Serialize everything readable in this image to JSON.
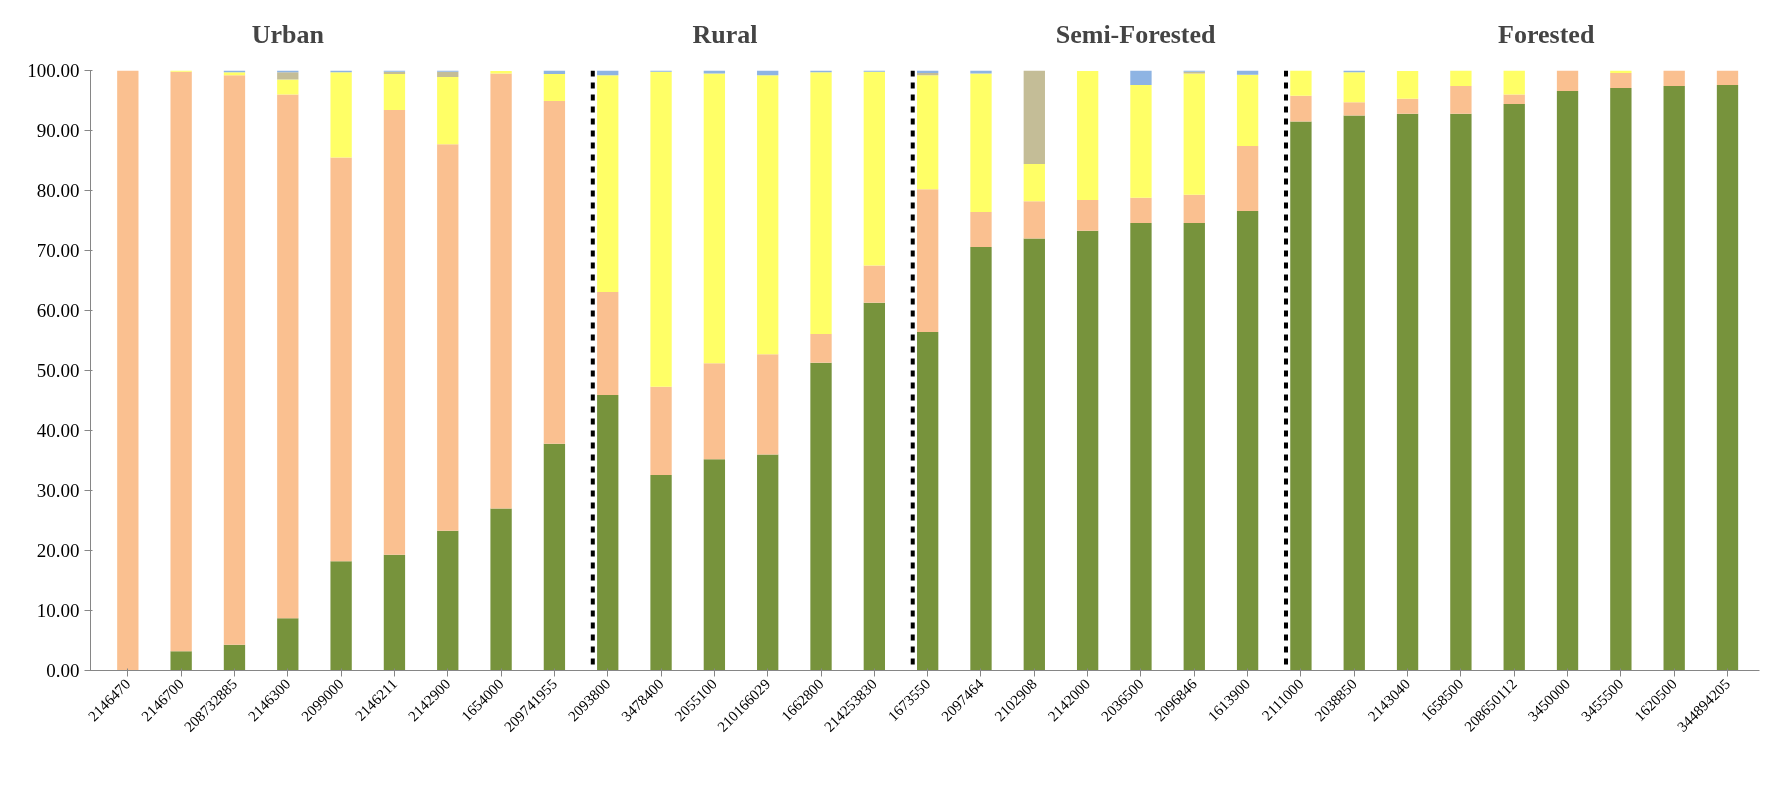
{
  "chart_data": {
    "type": "bar",
    "stacked": true,
    "categories": [
      "2146470",
      "2146700",
      "208732885",
      "2146300",
      "2099000",
      "2146211",
      "2142900",
      "1654000",
      "209741955",
      "2093800",
      "3478400",
      "2055100",
      "210166029",
      "1662800",
      "214253830",
      "1673550",
      "2097464",
      "2102908",
      "2142000",
      "2036500",
      "2096846",
      "1613900",
      "2111000",
      "2038850",
      "2143040",
      "1658500",
      "208650112",
      "3450000",
      "3455500",
      "1620500",
      "344894205"
    ],
    "series": [
      {
        "color": "#77933c",
        "values": [
          0,
          3.2,
          4.3,
          8.7,
          18.2,
          19.3,
          23.3,
          27.0,
          37.8,
          45.9,
          32.6,
          35.2,
          36.0,
          51.3,
          61.3,
          56.4,
          70.6,
          72.0,
          73.3,
          74.6,
          74.6,
          76.6,
          91.5,
          92.5,
          92.8,
          92.8,
          94.4,
          96.6,
          97.1,
          97.4,
          97.6
        ]
      },
      {
        "color": "#fac090",
        "values": [
          100,
          96.6,
          94.9,
          87.3,
          67.3,
          74.1,
          64.4,
          72.5,
          57.1,
          17.2,
          14.7,
          16.0,
          16.7,
          4.8,
          6.2,
          23.8,
          5.8,
          6.2,
          5.1,
          4.2,
          4.7,
          10.8,
          4.3,
          2.2,
          2.5,
          4.6,
          1.6,
          3.4,
          2.5,
          2.6,
          2.4
        ]
      },
      {
        "color": "#ffff66",
        "values": [
          0,
          0.2,
          0.5,
          2.5,
          14.2,
          6.0,
          11.2,
          0.4,
          4.5,
          36.1,
          52.5,
          48.3,
          46.5,
          43.6,
          32.3,
          19.0,
          23.1,
          6.2,
          21.5,
          18.8,
          20.2,
          11.9,
          4.2,
          5.0,
          4.6,
          2.6,
          4.0,
          0,
          0.4,
          0,
          0
        ]
      },
      {
        "color": "#c4bd97",
        "values": [
          0,
          0,
          0,
          1.2,
          0,
          0.4,
          0.9,
          0,
          0,
          0,
          0,
          0,
          0,
          0,
          0,
          0.4,
          0,
          15.6,
          0,
          0,
          0.3,
          0,
          0,
          0,
          0,
          0,
          0,
          0,
          0,
          0,
          0
        ]
      },
      {
        "color": "#8eb4e3",
        "values": [
          0,
          0,
          0.3,
          0.3,
          0.3,
          0.2,
          0.2,
          null,
          0.6,
          0.8,
          0.2,
          0.5,
          0.8,
          0.3,
          0.2,
          0.4,
          0.5,
          0,
          null,
          2.4,
          0.2,
          0.7,
          0,
          0.3,
          null,
          0,
          0,
          0,
          0,
          0,
          0
        ]
      }
    ],
    "ylim": [
      0,
      100
    ],
    "yticks": [
      {
        "value": 0,
        "label": "0.00"
      },
      {
        "value": 10,
        "label": "10.00"
      },
      {
        "value": 20,
        "label": "20.00"
      },
      {
        "value": 30,
        "label": "30.00"
      },
      {
        "value": 40,
        "label": "40.00"
      },
      {
        "value": 50,
        "label": "50.00"
      },
      {
        "value": 60,
        "label": "60.00"
      },
      {
        "value": 70,
        "label": "70.00"
      },
      {
        "value": 80,
        "label": "80.00"
      },
      {
        "value": 90,
        "label": "90.00"
      },
      {
        "value": 100,
        "label": "100.00"
      }
    ],
    "grid": false,
    "annotations": [
      "Urban",
      "Rural",
      "Semi-Forested",
      "Forested"
    ]
  }
}
